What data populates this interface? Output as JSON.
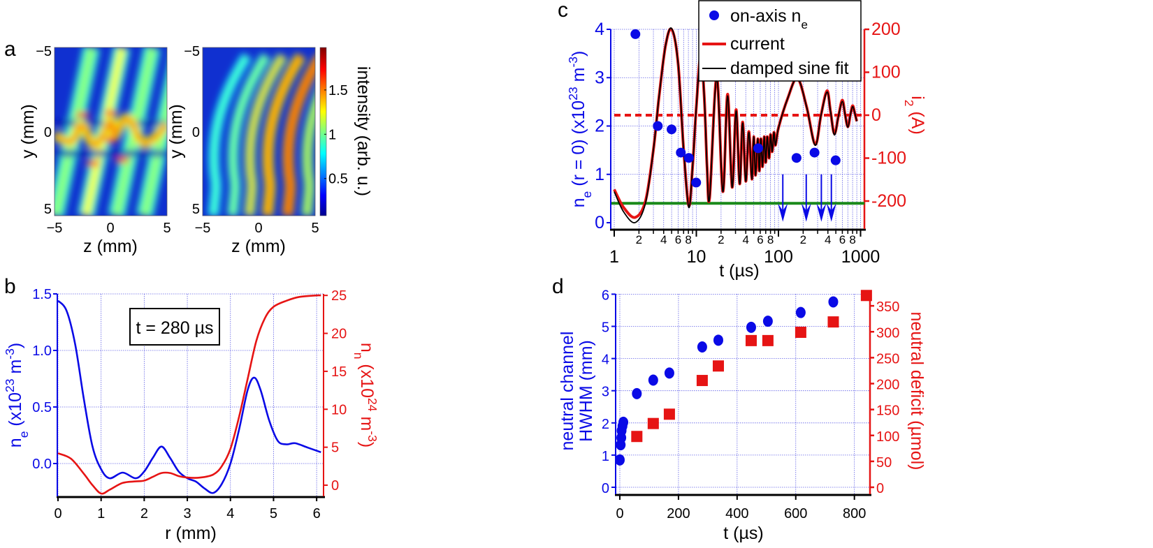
{
  "colors": {
    "blue": "#0a0ae6",
    "red": "#e61414",
    "green": "#1a8a1a",
    "black": "#000000"
  },
  "chart_data": [
    {
      "panel": "a",
      "type": "heatmap",
      "images": [
        {
          "xlabel": "z (mm)",
          "ylabel": "y (mm)",
          "xticks": [
            "−5",
            "0",
            "5"
          ],
          "yticks": [
            "−5",
            "0",
            "5"
          ],
          "xlim": [
            -5,
            5
          ],
          "ylim": [
            -5,
            5
          ]
        },
        {
          "xlabel": "z (mm)",
          "ylabel": "y (mm)",
          "xticks": [
            "−5",
            "0",
            "5"
          ],
          "yticks": [
            "−5",
            "0",
            "5"
          ],
          "xlim": [
            -5,
            5
          ],
          "ylim": [
            -5,
            5
          ]
        }
      ],
      "colorbar": {
        "label": "intensity (arb. u.)",
        "ticks": [
          "0.5",
          "1",
          "1.5"
        ],
        "range": [
          0.08,
          1.98
        ],
        "colormap": "jet"
      }
    },
    {
      "panel": "b",
      "type": "line",
      "annotation": "t = 280 µs",
      "xlabel": "r (mm)",
      "ylabel": {
        "a": "n",
        "sub": "e",
        "b": " (x10",
        "sup": "23",
        "c": " m",
        "sup2": "-3",
        "d": ")"
      },
      "y2label": {
        "a": "n",
        "sub": "n",
        "b": " (x10",
        "sup": "24",
        "c": " m",
        "sup2": "-3",
        "d": ")"
      },
      "xticks": [
        "0",
        "1",
        "2",
        "3",
        "4",
        "5",
        "6"
      ],
      "yticks": [
        "0.0",
        "0.5",
        "1.0",
        "1.5"
      ],
      "y2ticks": [
        "0",
        "5",
        "10",
        "15",
        "20",
        "25"
      ],
      "xlim": [
        0,
        6.16
      ],
      "ylim": [
        -0.29,
        1.5
      ],
      "y2lim": [
        -1.47,
        25.2
      ],
      "series": [
        {
          "name": "n_e",
          "axis": "left",
          "color": "#0a0ae6",
          "x": [
            0,
            0.2,
            0.4,
            0.6,
            0.8,
            1.0,
            1.2,
            1.5,
            1.8,
            2.0,
            2.2,
            2.4,
            2.6,
            2.8,
            3.0,
            3.2,
            3.4,
            3.6,
            3.8,
            4.0,
            4.2,
            4.4,
            4.55,
            4.7,
            4.9,
            5.1,
            5.3,
            5.5,
            5.8,
            6.1
          ],
          "y": [
            1.44,
            1.35,
            1.05,
            0.57,
            0.15,
            -0.05,
            -0.13,
            -0.08,
            -0.13,
            -0.07,
            0.05,
            0.15,
            0.05,
            -0.07,
            -0.13,
            -0.16,
            -0.22,
            -0.26,
            -0.18,
            0.0,
            0.3,
            0.65,
            0.76,
            0.65,
            0.38,
            0.2,
            0.17,
            0.18,
            0.14,
            0.1
          ]
        },
        {
          "name": "n_n",
          "axis": "right",
          "color": "#e61414",
          "x": [
            0,
            0.3,
            0.6,
            0.8,
            1.0,
            1.2,
            1.5,
            1.8,
            2.0,
            2.2,
            2.4,
            2.6,
            2.8,
            3.0,
            3.3,
            3.6,
            3.8,
            4.0,
            4.2,
            4.4,
            4.6,
            4.8,
            5.0,
            5.3,
            5.6,
            6.0,
            6.1
          ],
          "y": [
            4.2,
            3.5,
            1.5,
            0,
            -1.1,
            -0.6,
            0.3,
            0.5,
            0.6,
            1.1,
            1.6,
            1.6,
            1.2,
            1.0,
            1.0,
            1.4,
            2.5,
            4.8,
            9,
            14,
            19,
            22,
            23.5,
            24.3,
            24.8,
            25,
            25
          ]
        }
      ]
    },
    {
      "panel": "c",
      "type": "line",
      "xscale": "log",
      "xlabel": "t (µs)",
      "ylabel": {
        "a": "n",
        "sub": "e",
        "b": " (r = 0) (x10",
        "sup": "23",
        "c": " m",
        "sup2": "-3",
        "d": ")"
      },
      "y2label": {
        "a": "i",
        "sub": "2",
        "b": " (A)"
      },
      "xticks_major": [
        "1",
        "10",
        "100",
        "1000"
      ],
      "xticks_minor": [
        "2",
        "4",
        "6",
        "8"
      ],
      "yticks": [
        "0",
        "1",
        "2",
        "3",
        "4"
      ],
      "y2ticks": [
        "-200",
        "-100",
        "0",
        "100",
        "200"
      ],
      "xlim": [
        1,
        1000
      ],
      "ylim": [
        -0.13,
        4
      ],
      "y2lim": [
        -265,
        200
      ],
      "legend": {
        "position": "top-right",
        "entries": [
          {
            "a": "on-axis n",
            "sub": "e"
          },
          {
            "a": "current"
          },
          {
            "a": "damped sine fit"
          }
        ]
      },
      "on_axis_ne": {
        "t": [
          1.81,
          3.39,
          4.99,
          6.47,
          8.1,
          9.95,
          56.6,
          166,
          275,
          497
        ],
        "ne": [
          3.9,
          2.0,
          1.93,
          1.45,
          1.34,
          0.83,
          1.54,
          1.34,
          1.45,
          1.29
        ]
      },
      "current": {
        "t": [
          1,
          1.3,
          1.8,
          2.4,
          3,
          3.5,
          4.2,
          5,
          6,
          7,
          8.1,
          9,
          10,
          11.3,
          12.5,
          13.5,
          14.5,
          17.7,
          21,
          24,
          27.3,
          30.5,
          33.7,
          36.6,
          40,
          43.6,
          47.5,
          50,
          52.5,
          56,
          58.5,
          61,
          64,
          67,
          70,
          73,
          77,
          80,
          84,
          88,
          92,
          100,
          130,
          170,
          220,
          280,
          330,
          390,
          430,
          480,
          540,
          600,
          650,
          700,
          750,
          800,
          850,
          900
        ],
        "i": [
          -173,
          -215,
          -238,
          -200,
          -80,
          40,
          160,
          200,
          120,
          -80,
          -211,
          -120,
          20,
          140,
          40,
          -120,
          -192,
          89,
          -178,
          49,
          -168,
          13,
          -160,
          -16,
          -154,
          -38,
          -149,
          -50,
          -140,
          -55,
          -130,
          -55,
          -120,
          -50,
          -110,
          -50,
          -100,
          -45,
          -85,
          -40,
          -70,
          -30,
          40,
          86,
          20,
          -68,
          0,
          57,
          10,
          -43,
          0,
          35,
          0,
          -27,
          0,
          22,
          5,
          -14
        ]
      },
      "fit": {
        "t": [
          1,
          1.3,
          1.8,
          2.4,
          3,
          3.5,
          4.2,
          5,
          6,
          7,
          8.1,
          9,
          10,
          11.3,
          12.5,
          13.5,
          14.5,
          17.7,
          21,
          24,
          27.3,
          30.5,
          33.7,
          36.6,
          40,
          43.6,
          47.5,
          50,
          52.5,
          56,
          58.5,
          61,
          64,
          67,
          70,
          73,
          77,
          80,
          84,
          88,
          92,
          100,
          130,
          170,
          220,
          280,
          330,
          390,
          430,
          480,
          540,
          600,
          650,
          700,
          750,
          800,
          850,
          900
        ],
        "i": [
          -178,
          -225,
          -250,
          -205,
          -80,
          40,
          160,
          202,
          120,
          -80,
          -215,
          -120,
          20,
          138,
          40,
          -120,
          -192,
          86,
          -178,
          45,
          -168,
          10,
          -160,
          -18,
          -154,
          -40,
          -149,
          -50,
          -140,
          -55,
          -130,
          -55,
          -120,
          -50,
          -110,
          -50,
          -100,
          -45,
          -85,
          -40,
          -70,
          -30,
          40,
          86,
          20,
          -70,
          0,
          54,
          10,
          -46,
          0,
          32,
          0,
          -28,
          0,
          20,
          5,
          -14
        ]
      },
      "zero_current_line": 0,
      "green_line_ne": 0.4,
      "arrows_t": [
        113,
        218,
        333,
        441
      ]
    },
    {
      "panel": "d",
      "type": "scatter",
      "xlabel": "t (µs)",
      "ylabel": [
        "neutral channel",
        "HWHM (mm)"
      ],
      "y2label": "neutral deficit (µmol)",
      "xticks": [
        "0",
        "200",
        "400",
        "600",
        "800"
      ],
      "yticks": [
        "0",
        "1",
        "2",
        "3",
        "4",
        "5",
        "6"
      ],
      "y2ticks": [
        "0",
        "50",
        "100",
        "150",
        "200",
        "250",
        "300",
        "350"
      ],
      "xlim": [
        -15,
        850
      ],
      "ylim": [
        -0.23,
        6
      ],
      "y2lim": [
        -14,
        373
      ],
      "series": [
        {
          "name": "neutral channel HWHM",
          "axis": "left",
          "marker": "circle",
          "color": "#0a0ae6",
          "x": [
            0,
            3,
            5,
            6,
            9,
            12,
            58,
            114,
            169,
            281,
            336,
            448,
            505,
            617,
            728
          ],
          "y": [
            0.85,
            1.32,
            1.54,
            1.76,
            1.9,
            2.02,
            2.91,
            3.33,
            3.55,
            4.36,
            4.57,
            4.97,
            5.16,
            5.43,
            5.76
          ]
        },
        {
          "name": "neutral deficit",
          "axis": "right",
          "marker": "square",
          "color": "#e61414",
          "x": [
            58,
            114,
            169,
            281,
            336,
            448,
            505,
            617,
            728,
            841
          ],
          "y": [
            98,
            123,
            141,
            206,
            234,
            283,
            283,
            299,
            319,
            370
          ]
        }
      ]
    }
  ],
  "panels": {
    "a": "a",
    "b": "b",
    "c": "c",
    "d": "d"
  }
}
